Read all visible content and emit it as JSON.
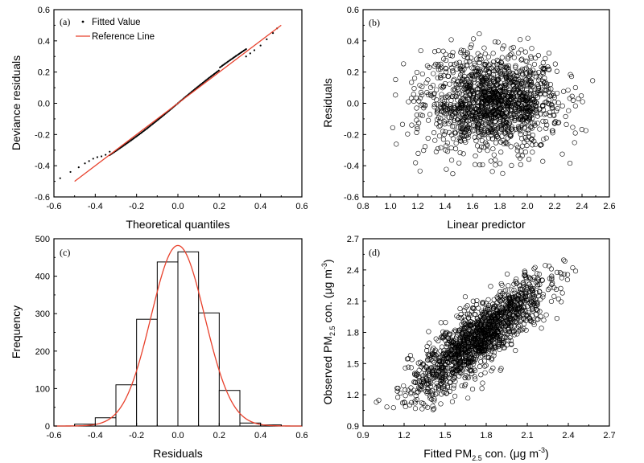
{
  "chart_data": [
    {
      "id": "a",
      "type": "scatter",
      "panel_label": "(a)",
      "xlabel": "Theoretical quantiles",
      "ylabel": "Deviance residuals",
      "xlim": [
        -0.6,
        0.6
      ],
      "ylim": [
        -0.6,
        0.6
      ],
      "xticks": [
        "-0.6",
        "-0.4",
        "-0.2",
        "0.0",
        "0.2",
        "0.4",
        "0.6"
      ],
      "yticks": [
        "-0.6",
        "-0.4",
        "-0.2",
        "0.0",
        "0.2",
        "0.4",
        "0.6"
      ],
      "legend_position": "top-left",
      "series": [
        {
          "name": "Fitted Value",
          "kind": "points",
          "x_range": [
            -0.57,
            0.48
          ],
          "tail_low": [
            [
              -0.57,
              -0.48
            ],
            [
              -0.52,
              -0.44
            ],
            [
              -0.48,
              -0.41
            ],
            [
              -0.45,
              -0.385
            ],
            [
              -0.43,
              -0.37
            ],
            [
              -0.41,
              -0.355
            ],
            [
              -0.39,
              -0.345
            ],
            [
              -0.37,
              -0.34
            ],
            [
              -0.35,
              -0.33
            ],
            [
              -0.33,
              -0.31
            ]
          ],
          "tail_high": [
            [
              0.33,
              0.3
            ],
            [
              0.35,
              0.32
            ],
            [
              0.37,
              0.34
            ],
            [
              0.4,
              0.37
            ],
            [
              0.43,
              0.41
            ],
            [
              0.46,
              0.45
            ],
            [
              0.48,
              0.48
            ]
          ]
        },
        {
          "name": "Reference Line",
          "kind": "line",
          "x": [
            -0.5,
            0.5
          ],
          "y": [
            -0.5,
            0.5
          ],
          "color": "#e8412c"
        }
      ]
    },
    {
      "id": "b",
      "type": "scatter",
      "panel_label": "(b)",
      "xlabel": "Linear predictor",
      "ylabel": "Residuals",
      "xlim": [
        0.8,
        2.6
      ],
      "ylim": [
        -0.6,
        0.6
      ],
      "xticks": [
        "0.8",
        "1.0",
        "1.2",
        "1.4",
        "1.6",
        "1.8",
        "2.0",
        "2.2",
        "2.4",
        "2.6"
      ],
      "yticks": [
        "-0.6",
        "-0.4",
        "-0.2",
        "0.0",
        "0.2",
        "0.4",
        "0.6"
      ],
      "cloud": {
        "x_range": [
          0.97,
          2.5
        ],
        "x_center": 1.75,
        "y_center": 0.0,
        "y_sd": 0.15,
        "n": 1500
      }
    },
    {
      "id": "c",
      "type": "bar",
      "panel_label": "(c)",
      "xlabel": "Residuals",
      "ylabel": "Frequency",
      "xlim": [
        -0.6,
        0.6
      ],
      "ylim": [
        0,
        500
      ],
      "xticks": [
        "-0.6",
        "-0.4",
        "-0.2",
        "0.0",
        "0.2",
        "0.4",
        "0.6"
      ],
      "yticks": [
        "0",
        "100",
        "200",
        "300",
        "400",
        "500"
      ],
      "bin_edges": [
        -0.5,
        -0.4,
        -0.3,
        -0.2,
        -0.1,
        0.0,
        0.1,
        0.2,
        0.3,
        0.4,
        0.5
      ],
      "values": [
        5,
        22,
        110,
        285,
        438,
        465,
        302,
        95,
        8,
        3
      ],
      "curve": {
        "kind": "normal",
        "mean": 0.0,
        "sd": 0.13,
        "peak": 482,
        "color": "#e8412c"
      }
    },
    {
      "id": "d",
      "type": "scatter",
      "panel_label": "(d)",
      "xlabel_parts": [
        "Fitted PM",
        "2.5",
        " con. (μg m",
        "-3",
        ")"
      ],
      "ylabel_parts": [
        "Observed PM",
        "2.5",
        " con. (μg m",
        "-3",
        ")"
      ],
      "xlim": [
        0.9,
        2.7
      ],
      "ylim": [
        0.9,
        2.7
      ],
      "xticks": [
        "0.9",
        "1.2",
        "1.5",
        "1.8",
        "2.1",
        "2.4",
        "2.7"
      ],
      "yticks": [
        "0.9",
        "1.2",
        "1.5",
        "1.8",
        "2.1",
        "2.4",
        "2.7"
      ],
      "cloud": {
        "x_range": [
          0.97,
          2.5
        ],
        "relation": "y = x + residual",
        "residual_sd": 0.15,
        "n": 1500
      }
    }
  ]
}
